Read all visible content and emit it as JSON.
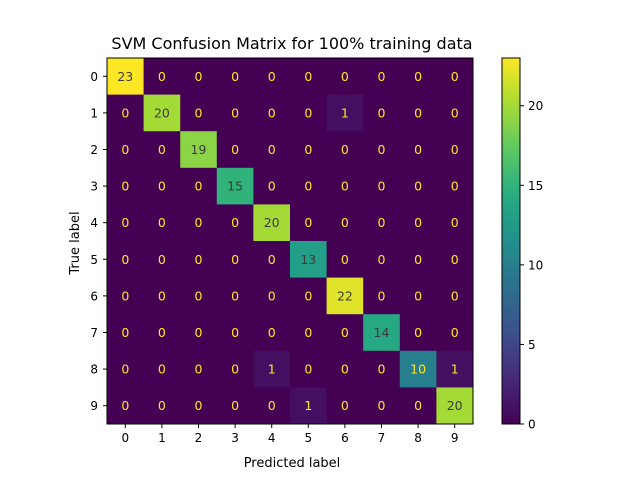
{
  "chart_data": {
    "type": "heatmap",
    "title": "SVM Confusion Matrix for 100% training data",
    "xlabel": "Predicted label",
    "ylabel": "True label",
    "x_categories": [
      "0",
      "1",
      "2",
      "3",
      "4",
      "5",
      "6",
      "7",
      "8",
      "9"
    ],
    "y_categories": [
      "0",
      "1",
      "2",
      "3",
      "4",
      "5",
      "6",
      "7",
      "8",
      "9"
    ],
    "matrix": [
      [
        23,
        0,
        0,
        0,
        0,
        0,
        0,
        0,
        0,
        0
      ],
      [
        0,
        20,
        0,
        0,
        0,
        0,
        1,
        0,
        0,
        0
      ],
      [
        0,
        0,
        19,
        0,
        0,
        0,
        0,
        0,
        0,
        0
      ],
      [
        0,
        0,
        0,
        15,
        0,
        0,
        0,
        0,
        0,
        0
      ],
      [
        0,
        0,
        0,
        0,
        20,
        0,
        0,
        0,
        0,
        0
      ],
      [
        0,
        0,
        0,
        0,
        0,
        13,
        0,
        0,
        0,
        0
      ],
      [
        0,
        0,
        0,
        0,
        0,
        0,
        22,
        0,
        0,
        0
      ],
      [
        0,
        0,
        0,
        0,
        0,
        0,
        0,
        14,
        0,
        0
      ],
      [
        0,
        0,
        0,
        0,
        1,
        0,
        0,
        0,
        10,
        1
      ],
      [
        0,
        0,
        0,
        0,
        0,
        1,
        0,
        0,
        0,
        20
      ]
    ],
    "value_range": [
      0,
      23
    ],
    "colormap": "viridis",
    "colorbar": {
      "ticks": [
        0,
        5,
        10,
        15,
        20
      ],
      "tick_labels": [
        "0",
        "5",
        "10",
        "15",
        "20"
      ]
    },
    "grid": false
  }
}
